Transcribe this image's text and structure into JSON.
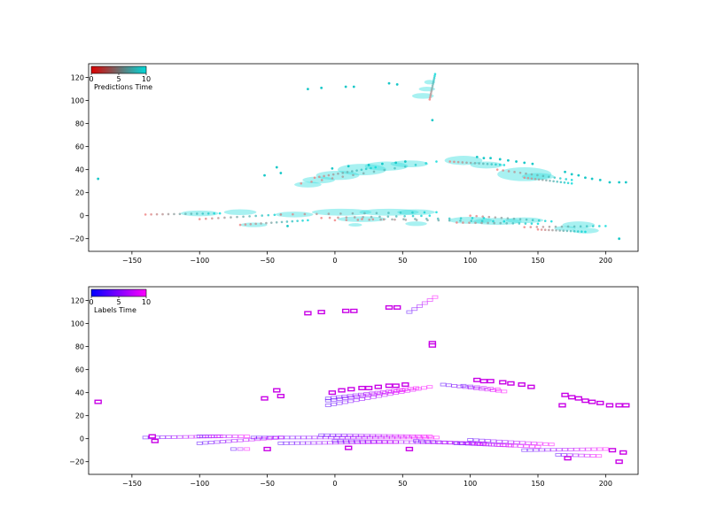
{
  "chart_data": [
    {
      "type": "scatter",
      "name": "predictions",
      "xlim": [
        -182,
        224
      ],
      "ylim": [
        -31,
        132
      ],
      "xticks": [
        -150,
        -100,
        -50,
        0,
        50,
        100,
        150,
        200
      ],
      "yticks": [
        -20,
        0,
        20,
        40,
        60,
        80,
        100,
        120
      ],
      "grid": false,
      "legend": {
        "placement": "top-left",
        "label": "Predictions Time",
        "ticks": [
          "0",
          "5",
          "10"
        ],
        "color_start": "#dc0000",
        "color_end": "#00d9d9"
      },
      "point_color": "#f08080",
      "ellipse_color": "#3fe0e0",
      "tracks": [
        {
          "from": [
            -140,
            1
          ],
          "to": [
            -85,
            2
          ]
        },
        {
          "from": [
            -100,
            -3
          ],
          "to": [
            -40,
            1
          ]
        },
        {
          "from": [
            -70,
            -8
          ],
          "to": [
            -20,
            -4
          ]
        },
        {
          "from": [
            -40,
            1
          ],
          "to": [
            75,
            3
          ]
        },
        {
          "from": [
            -10,
            -2
          ],
          "to": [
            70,
            0
          ]
        },
        {
          "from": [
            0,
            -4
          ],
          "to": [
            110,
            -2
          ]
        },
        {
          "from": [
            20,
            -3
          ],
          "to": [
            125,
            -5
          ]
        },
        {
          "from": [
            90,
            -6
          ],
          "to": [
            150,
            -7
          ]
        },
        {
          "from": [
            100,
            0
          ],
          "to": [
            160,
            -5
          ]
        },
        {
          "from": [
            140,
            -10
          ],
          "to": [
            200,
            -9
          ]
        },
        {
          "from": [
            150,
            -12
          ],
          "to": [
            185,
            -14
          ]
        },
        {
          "from": [
            -25,
            28
          ],
          "to": [
            75,
            47
          ]
        },
        {
          "from": [
            -15,
            33
          ],
          "to": [
            30,
            42
          ]
        },
        {
          "from": [
            85,
            47
          ],
          "to": [
            125,
            44
          ]
        },
        {
          "from": [
            120,
            40
          ],
          "to": [
            175,
            31
          ]
        },
        {
          "from": [
            140,
            33
          ],
          "to": [
            175,
            28
          ]
        },
        {
          "from": [
            70,
            101
          ],
          "to": [
            74,
            123
          ]
        }
      ],
      "blobs": [
        {
          "x": -100,
          "y": 2,
          "rx": 14,
          "ry": 2.5
        },
        {
          "x": -70,
          "y": 3,
          "rx": 12,
          "ry": 2.5
        },
        {
          "x": -60,
          "y": -8,
          "rx": 10,
          "ry": 2
        },
        {
          "x": -30,
          "y": 1,
          "rx": 14,
          "ry": 2.5
        },
        {
          "x": 5,
          "y": 3,
          "rx": 22,
          "ry": 3
        },
        {
          "x": 40,
          "y": 3,
          "rx": 22,
          "ry": 3
        },
        {
          "x": 60,
          "y": 3,
          "rx": 14,
          "ry": 2.5
        },
        {
          "x": 20,
          "y": -3,
          "rx": 18,
          "ry": 2.5
        },
        {
          "x": 60,
          "y": -7,
          "rx": 8,
          "ry": 2
        },
        {
          "x": 100,
          "y": -4,
          "rx": 16,
          "ry": 3
        },
        {
          "x": 120,
          "y": -5,
          "rx": 18,
          "ry": 3
        },
        {
          "x": 140,
          "y": -4,
          "rx": 14,
          "ry": 2.5
        },
        {
          "x": 180,
          "y": -8,
          "rx": 12,
          "ry": 3
        },
        {
          "x": 185,
          "y": -13,
          "rx": 10,
          "ry": 2.5
        },
        {
          "x": 170,
          "y": -11,
          "rx": 8,
          "ry": 2
        },
        {
          "x": 15,
          "y": -8,
          "rx": 5,
          "ry": 1.5
        },
        {
          "x": -12,
          "y": 31,
          "rx": 12,
          "ry": 3
        },
        {
          "x": 2,
          "y": 35,
          "rx": 16,
          "ry": 4
        },
        {
          "x": 20,
          "y": 40,
          "rx": 18,
          "ry": 5
        },
        {
          "x": 38,
          "y": 43,
          "rx": 16,
          "ry": 4
        },
        {
          "x": -20,
          "y": 27,
          "rx": 10,
          "ry": 2.5
        },
        {
          "x": 55,
          "y": 45,
          "rx": 14,
          "ry": 3
        },
        {
          "x": 95,
          "y": 48,
          "rx": 14,
          "ry": 4
        },
        {
          "x": 112,
          "y": 44,
          "rx": 12,
          "ry": 3
        },
        {
          "x": 140,
          "y": 36,
          "rx": 20,
          "ry": 6
        },
        {
          "x": 150,
          "y": 34,
          "rx": 12,
          "ry": 3
        },
        {
          "x": 65,
          "y": 104,
          "rx": 8,
          "ry": 2.5
        },
        {
          "x": 68,
          "y": 110,
          "rx": 6,
          "ry": 2
        },
        {
          "x": 70,
          "y": 116,
          "rx": 4,
          "ry": 2
        }
      ],
      "points": [
        [
          -175,
          32
        ],
        [
          -20,
          110
        ],
        [
          -10,
          111
        ],
        [
          8,
          112
        ],
        [
          14,
          112
        ],
        [
          40,
          115
        ],
        [
          46,
          114
        ],
        [
          72,
          83
        ],
        [
          -52,
          35
        ],
        [
          -43,
          42
        ],
        [
          -40,
          37
        ],
        [
          105,
          51
        ],
        [
          110,
          50
        ],
        [
          115,
          50
        ],
        [
          122,
          49
        ],
        [
          128,
          48
        ],
        [
          134,
          47
        ],
        [
          140,
          46
        ],
        [
          146,
          45
        ],
        [
          170,
          38
        ],
        [
          175,
          36
        ],
        [
          180,
          35
        ],
        [
          185,
          33
        ],
        [
          190,
          32
        ],
        [
          196,
          31
        ],
        [
          203,
          29
        ],
        [
          210,
          29
        ],
        [
          215,
          29
        ],
        [
          -35,
          -9
        ],
        [
          210,
          -20
        ],
        [
          -2,
          41
        ],
        [
          10,
          43
        ],
        [
          25,
          44
        ],
        [
          35,
          45
        ],
        [
          45,
          46
        ],
        [
          52,
          47
        ]
      ]
    },
    {
      "type": "scatter",
      "name": "labels",
      "xlim": [
        -182,
        224
      ],
      "ylim": [
        -31,
        132
      ],
      "xticks": [
        -150,
        -100,
        -50,
        0,
        50,
        100,
        150,
        200
      ],
      "yticks": [
        -20,
        0,
        20,
        40,
        60,
        80,
        100,
        120
      ],
      "grid": false,
      "legend": {
        "placement": "top-left",
        "label": "Labels Time",
        "ticks": [
          "0",
          "5",
          "10"
        ],
        "color_start": "#0000ff",
        "color_end": "#ff00ff"
      },
      "tracks": [
        {
          "from": [
            -140,
            1
          ],
          "to": [
            -85,
            2
          ]
        },
        {
          "from": [
            -100,
            2
          ],
          "to": [
            -65,
            2
          ]
        },
        {
          "from": [
            -100,
            -4
          ],
          "to": [
            -40,
            1
          ]
        },
        {
          "from": [
            -60,
            1
          ],
          "to": [
            75,
            1
          ]
        },
        {
          "from": [
            -40,
            -4
          ],
          "to": [
            45,
            -3
          ]
        },
        {
          "from": [
            -10,
            3
          ],
          "to": [
            70,
            2
          ]
        },
        {
          "from": [
            0,
            -2
          ],
          "to": [
            110,
            -4
          ]
        },
        {
          "from": [
            60,
            -2
          ],
          "to": [
            130,
            -6
          ]
        },
        {
          "from": [
            90,
            -4
          ],
          "to": [
            150,
            -7
          ]
        },
        {
          "from": [
            100,
            -1
          ],
          "to": [
            160,
            -5
          ]
        },
        {
          "from": [
            140,
            -10
          ],
          "to": [
            200,
            -9
          ]
        },
        {
          "from": [
            165,
            -14
          ],
          "to": [
            195,
            -15
          ]
        },
        {
          "from": [
            -5,
            29
          ],
          "to": [
            70,
            45
          ]
        },
        {
          "from": [
            -5,
            33
          ],
          "to": [
            50,
            42
          ]
        },
        {
          "from": [
            -5,
            35
          ],
          "to": [
            60,
            44
          ]
        },
        {
          "from": [
            80,
            47
          ],
          "to": [
            125,
            41
          ]
        },
        {
          "from": [
            95,
            46
          ],
          "to": [
            120,
            43
          ]
        },
        {
          "from": [
            55,
            110
          ],
          "to": [
            74,
            123
          ]
        },
        {
          "from": [
            -75,
            -9
          ],
          "to": [
            -65,
            -9
          ]
        }
      ],
      "boxes": [
        [
          -175,
          32
        ],
        [
          -20,
          109
        ],
        [
          -10,
          110
        ],
        [
          8,
          111
        ],
        [
          14,
          111
        ],
        [
          40,
          114
        ],
        [
          46,
          114
        ],
        [
          72,
          83
        ],
        [
          72,
          81
        ],
        [
          -52,
          35
        ],
        [
          -43,
          42
        ],
        [
          -40,
          37
        ],
        [
          -50,
          -9
        ],
        [
          10,
          -8
        ],
        [
          55,
          -9
        ],
        [
          -133,
          -2
        ],
        [
          -135,
          2
        ],
        [
          105,
          51
        ],
        [
          110,
          50
        ],
        [
          115,
          50
        ],
        [
          124,
          49
        ],
        [
          130,
          48
        ],
        [
          138,
          47
        ],
        [
          145,
          45
        ],
        [
          170,
          38
        ],
        [
          175,
          36
        ],
        [
          180,
          35
        ],
        [
          185,
          33
        ],
        [
          190,
          32
        ],
        [
          196,
          31
        ],
        [
          203,
          29
        ],
        [
          210,
          29
        ],
        [
          215,
          29
        ],
        [
          168,
          29
        ],
        [
          172,
          -17
        ],
        [
          210,
          -20
        ],
        [
          213,
          -12
        ],
        [
          205,
          -10
        ],
        [
          -2,
          40
        ],
        [
          5,
          42
        ],
        [
          12,
          43
        ],
        [
          20,
          44
        ],
        [
          25,
          44
        ],
        [
          32,
          45
        ],
        [
          40,
          46
        ],
        [
          45,
          46
        ],
        [
          52,
          47
        ]
      ]
    }
  ]
}
